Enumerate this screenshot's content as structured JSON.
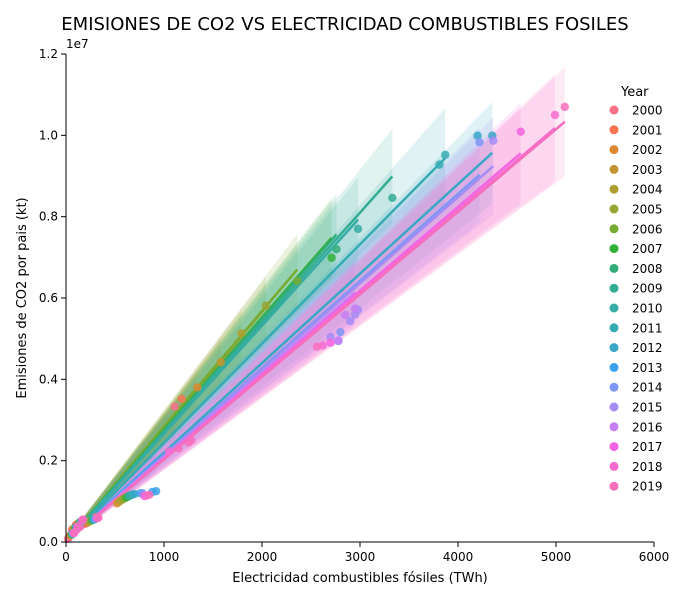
{
  "chart_data": {
    "type": "scatter",
    "title": "EMISIONES DE CO2 VS ELECTRICIDAD COMBUSTIBLES FOSILES",
    "xlabel": "Electricidad combustibles fósiles (TWh)",
    "ylabel": "Emisiones de CO2 por pais (kt)",
    "y_offset_text": "1e7",
    "xlim": [
      0,
      6000
    ],
    "ylim": [
      0,
      12000000
    ],
    "xticks": [
      "0",
      "1000",
      "2000",
      "3000",
      "4000",
      "5000",
      "6000"
    ],
    "yticks": [
      "0.0",
      "0.2",
      "0.4",
      "0.6",
      "0.8",
      "1.0",
      "1.2"
    ],
    "grid": false,
    "legend_title": "Year",
    "legend_position": "right",
    "series": [
      {
        "name": "2000",
        "color": "#f77189",
        "slope": 2700,
        "points": [
          [
            1110,
            3330000
          ],
          [
            40,
            150000
          ],
          [
            60,
            300000
          ],
          [
            100,
            420000
          ],
          [
            200,
            450000
          ],
          [
            300,
            600000
          ],
          [
            20,
            80000
          ]
        ]
      },
      {
        "name": "2001",
        "color": "#f7754f",
        "slope": 2740,
        "points": [
          [
            1180,
            3520000
          ],
          [
            45,
            160000
          ],
          [
            70,
            310000
          ],
          [
            110,
            430000
          ],
          [
            210,
            470000
          ],
          [
            310,
            610000
          ]
        ]
      },
      {
        "name": "2002",
        "color": "#dc8932",
        "slope": 2760,
        "points": [
          [
            1340,
            3800000
          ],
          [
            50,
            170000
          ],
          [
            75,
            320000
          ],
          [
            120,
            440000
          ],
          [
            220,
            480000
          ],
          [
            520,
            950000
          ]
        ]
      },
      {
        "name": "2003",
        "color": "#c39532",
        "slope": 2790,
        "points": [
          [
            1580,
            4420000
          ],
          [
            52,
            175000
          ],
          [
            80,
            330000
          ],
          [
            125,
            450000
          ],
          [
            230,
            500000
          ],
          [
            540,
            990000
          ]
        ]
      },
      {
        "name": "2004",
        "color": "#ae9d31",
        "slope": 2820,
        "points": [
          [
            1790,
            5130000
          ],
          [
            55,
            180000
          ],
          [
            85,
            340000
          ],
          [
            130,
            460000
          ],
          [
            240,
            510000
          ],
          [
            560,
            1020000
          ]
        ]
      },
      {
        "name": "2005",
        "color": "#97a431",
        "slope": 2830,
        "points": [
          [
            2040,
            5810000
          ],
          [
            58,
            185000
          ],
          [
            90,
            345000
          ],
          [
            135,
            470000
          ],
          [
            250,
            520000
          ],
          [
            580,
            1050000
          ]
        ]
      },
      {
        "name": "2006",
        "color": "#77ab31",
        "slope": 2840,
        "points": [
          [
            2360,
            6420000
          ],
          [
            60,
            190000
          ],
          [
            95,
            350000
          ],
          [
            140,
            480000
          ],
          [
            260,
            530000
          ],
          [
            600,
            1080000
          ]
        ]
      },
      {
        "name": "2007",
        "color": "#33b039",
        "slope": 2760,
        "points": [
          [
            2710,
            6990000
          ],
          [
            62,
            195000
          ],
          [
            100,
            355000
          ],
          [
            145,
            490000
          ],
          [
            270,
            540000
          ],
          [
            620,
            1100000
          ]
        ]
      },
      {
        "name": "2008",
        "color": "#33ae7a",
        "slope": 2740,
        "points": [
          [
            2760,
            7200000
          ],
          [
            64,
            200000
          ],
          [
            102,
            360000
          ],
          [
            150,
            495000
          ],
          [
            275,
            545000
          ],
          [
            640,
            1130000
          ]
        ]
      },
      {
        "name": "2009",
        "color": "#34ad95",
        "slope": 2700,
        "points": [
          [
            3330,
            8460000
          ],
          [
            65,
            200000
          ],
          [
            104,
            360000
          ],
          [
            152,
            500000
          ],
          [
            280,
            550000
          ],
          [
            650,
            1140000
          ]
        ]
      },
      {
        "name": "2010",
        "color": "#36ada4",
        "slope": 2660,
        "points": [
          [
            2980,
            7700000
          ],
          [
            67,
            205000
          ],
          [
            106,
            365000
          ],
          [
            155,
            505000
          ],
          [
            285,
            555000
          ],
          [
            660,
            1150000
          ]
        ]
      },
      {
        "name": "2011",
        "color": "#37abb4",
        "slope": 2440,
        "points": [
          [
            3810,
            9280000
          ],
          [
            3870,
            9520000
          ],
          [
            68,
            208000
          ],
          [
            108,
            368000
          ],
          [
            158,
            510000
          ],
          [
            290,
            560000
          ],
          [
            680,
            1170000
          ]
        ]
      },
      {
        "name": "2012",
        "color": "#39a7c5",
        "slope": 2200,
        "points": [
          [
            4200,
            9990000
          ],
          [
            4350,
            9990000
          ],
          [
            70,
            210000
          ],
          [
            110,
            370000
          ],
          [
            160,
            515000
          ],
          [
            295,
            565000
          ],
          [
            700,
            1180000
          ]
        ]
      },
      {
        "name": "2013",
        "color": "#3ba3ec",
        "slope": 2200,
        "points": [
          [
            880,
            1230000
          ],
          [
            920,
            1250000
          ],
          [
            72,
            212000
          ],
          [
            112,
            372000
          ],
          [
            162,
            520000
          ],
          [
            300,
            570000
          ],
          [
            760,
            1200000
          ]
        ]
      },
      {
        "name": "2014",
        "color": "#7e97f4",
        "slope": 2140,
        "points": [
          [
            4220,
            9830000
          ],
          [
            2800,
            5160000
          ],
          [
            74,
            215000
          ],
          [
            114,
            374000
          ],
          [
            164,
            525000
          ],
          [
            305,
            575000
          ],
          [
            780,
            1200000
          ]
        ]
      },
      {
        "name": "2015",
        "color": "#a48cf4",
        "slope": 2120,
        "points": [
          [
            4360,
            9870000
          ],
          [
            2780,
            4940000
          ],
          [
            2900,
            5430000
          ],
          [
            2950,
            5590000
          ],
          [
            2980,
            5710000
          ],
          [
            2700,
            5040000
          ],
          [
            76,
            218000
          ],
          [
            116,
            376000
          ],
          [
            166,
            530000
          ],
          [
            310,
            580000
          ]
        ]
      },
      {
        "name": "2016",
        "color": "#c57ef4",
        "slope": 2080,
        "points": [
          [
            2950,
            5740000
          ],
          [
            2850,
            5580000
          ],
          [
            2780,
            4960000
          ],
          [
            78,
            220000
          ],
          [
            118,
            378000
          ],
          [
            168,
            535000
          ],
          [
            315,
            585000
          ]
        ]
      },
      {
        "name": "2017",
        "color": "#f564e3",
        "slope": 2060,
        "points": [
          [
            4640,
            10090000
          ],
          [
            2700,
            4900000
          ],
          [
            80,
            222000
          ],
          [
            120,
            380000
          ],
          [
            170,
            540000
          ],
          [
            320,
            590000
          ],
          [
            800,
            1130000
          ]
        ]
      },
      {
        "name": "2018",
        "color": "#f66bd0",
        "slope": 2040,
        "points": [
          [
            4990,
            10500000
          ],
          [
            2620,
            4830000
          ],
          [
            1050,
            2230000
          ],
          [
            82,
            225000
          ],
          [
            122,
            382000
          ],
          [
            172,
            545000
          ],
          [
            325,
            595000
          ],
          [
            820,
            1140000
          ]
        ]
      },
      {
        "name": "2019",
        "color": "#f76fbc",
        "slope": 2030,
        "points": [
          [
            5090,
            10700000
          ],
          [
            2560,
            4800000
          ],
          [
            1250,
            2450000
          ],
          [
            1280,
            2500000
          ],
          [
            1150,
            2300000
          ],
          [
            84,
            228000
          ],
          [
            124,
            384000
          ],
          [
            174,
            550000
          ],
          [
            330,
            600000
          ],
          [
            850,
            1160000
          ]
        ]
      }
    ]
  }
}
